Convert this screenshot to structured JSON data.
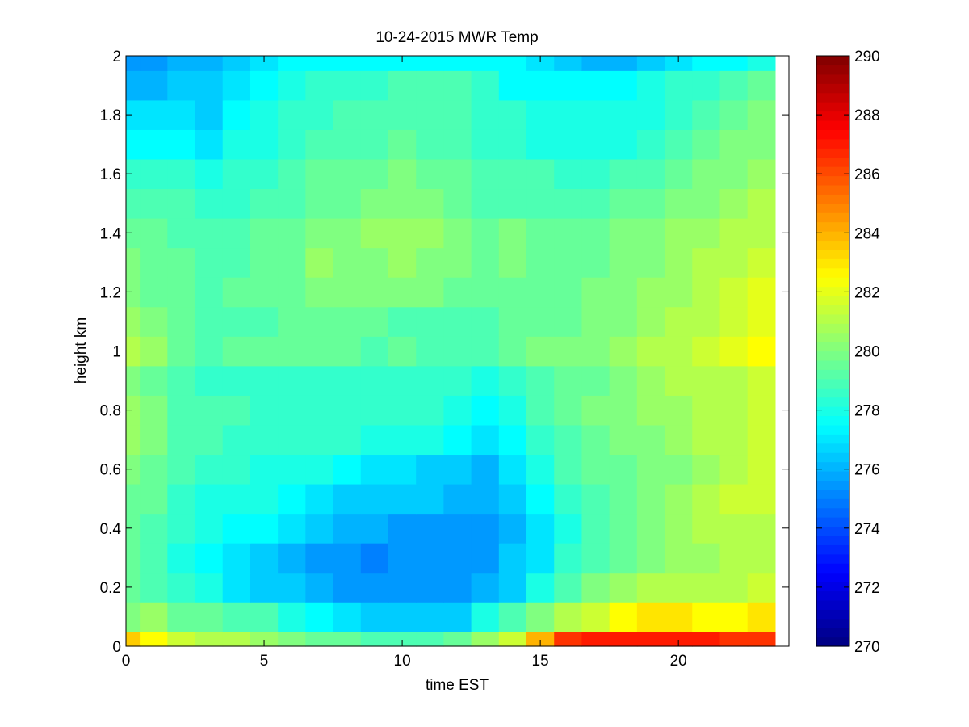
{
  "chart_data": {
    "type": "heatmap",
    "title": "10-24-2015 MWR Temp",
    "xlabel": "time EST",
    "ylabel": "height km",
    "colormap": "jet",
    "xlim": [
      0,
      24
    ],
    "ylim": [
      0,
      2
    ],
    "clim": [
      270,
      290
    ],
    "x_ticks": [
      0,
      5,
      10,
      15,
      20
    ],
    "y_ticks": [
      0,
      0.2,
      0.4,
      0.6,
      0.8,
      1,
      1.2,
      1.4,
      1.6,
      1.8,
      2
    ],
    "colorbar_ticks": [
      270,
      272,
      274,
      276,
      278,
      280,
      282,
      284,
      286,
      288,
      290
    ],
    "x": [
      0,
      1,
      2,
      3,
      4,
      5,
      6,
      7,
      8,
      9,
      10,
      11,
      12,
      13,
      14,
      15,
      16,
      17,
      18,
      19,
      20,
      21,
      22,
      23
    ],
    "y": [
      0,
      0.1,
      0.2,
      0.3,
      0.4,
      0.5,
      0.6,
      0.7,
      0.8,
      0.9,
      1.0,
      1.1,
      1.2,
      1.3,
      1.4,
      1.5,
      1.6,
      1.7,
      1.8,
      1.9,
      2.0
    ],
    "z": [
      [
        283.5,
        282.5,
        281.5,
        281.0,
        281.0,
        280.5,
        280.0,
        279.5,
        279.5,
        279.0,
        279.0,
        279.0,
        279.5,
        280.5,
        281.5,
        284.0,
        286.5,
        287.0,
        287.0,
        287.0,
        287.0,
        287.0,
        286.5,
        286.5
      ],
      [
        280.0,
        280.5,
        279.5,
        279.5,
        279.0,
        279.0,
        278.0,
        277.5,
        277.0,
        276.5,
        276.5,
        276.5,
        276.5,
        278.0,
        279.0,
        280.0,
        281.0,
        281.5,
        282.5,
        283.0,
        283.0,
        282.5,
        282.5,
        283.0
      ],
      [
        279.5,
        279.0,
        278.5,
        278.0,
        277.0,
        276.5,
        276.5,
        276.0,
        275.5,
        275.5,
        275.5,
        275.5,
        275.5,
        276.0,
        276.5,
        278.0,
        279.0,
        280.0,
        280.5,
        281.0,
        281.0,
        281.0,
        281.0,
        281.5
      ],
      [
        279.5,
        279.0,
        278.0,
        277.5,
        277.0,
        276.5,
        276.0,
        275.5,
        275.5,
        275.0,
        275.5,
        275.5,
        275.5,
        275.5,
        276.5,
        277.0,
        278.5,
        279.0,
        279.5,
        280.0,
        280.5,
        280.5,
        281.0,
        281.0
      ],
      [
        279.5,
        279.0,
        278.5,
        278.0,
        277.5,
        277.5,
        277.0,
        276.5,
        276.0,
        276.0,
        275.5,
        275.5,
        275.5,
        275.5,
        276.0,
        277.0,
        278.0,
        279.0,
        279.5,
        280.0,
        280.5,
        281.0,
        281.0,
        281.0
      ],
      [
        279.5,
        279.5,
        278.5,
        278.0,
        278.0,
        278.0,
        277.5,
        277.0,
        276.5,
        276.5,
        276.5,
        276.5,
        276.0,
        276.0,
        276.5,
        277.5,
        278.5,
        279.0,
        279.5,
        280.0,
        280.5,
        281.0,
        281.5,
        281.5
      ],
      [
        280.0,
        279.5,
        279.0,
        278.5,
        278.5,
        278.0,
        278.0,
        278.0,
        277.5,
        277.0,
        277.0,
        276.5,
        276.5,
        276.0,
        277.0,
        278.0,
        279.0,
        279.5,
        279.5,
        280.0,
        280.0,
        280.5,
        281.0,
        281.5
      ],
      [
        280.5,
        280.0,
        279.0,
        279.0,
        278.5,
        278.5,
        278.5,
        278.5,
        278.5,
        278.0,
        278.0,
        278.0,
        277.5,
        277.0,
        277.5,
        278.5,
        279.0,
        279.5,
        280.0,
        280.0,
        280.5,
        281.0,
        281.0,
        281.5
      ],
      [
        280.5,
        280.0,
        279.0,
        279.0,
        279.0,
        278.5,
        278.5,
        278.5,
        278.5,
        278.5,
        278.5,
        278.5,
        278.0,
        277.5,
        278.0,
        279.0,
        279.5,
        280.0,
        280.0,
        280.5,
        280.5,
        281.0,
        281.0,
        281.5
      ],
      [
        280.0,
        279.5,
        279.0,
        278.5,
        278.5,
        278.5,
        278.5,
        278.5,
        278.5,
        278.5,
        278.5,
        278.5,
        278.5,
        278.0,
        278.5,
        279.0,
        279.5,
        279.5,
        280.0,
        280.5,
        281.0,
        281.0,
        281.0,
        281.5
      ],
      [
        281.0,
        280.5,
        279.5,
        279.0,
        279.5,
        279.5,
        279.5,
        279.5,
        279.5,
        279.0,
        279.5,
        279.0,
        279.0,
        279.0,
        279.5,
        280.0,
        280.0,
        280.0,
        280.5,
        281.0,
        281.0,
        281.5,
        282.0,
        282.5
      ],
      [
        280.5,
        280.0,
        279.5,
        279.0,
        279.0,
        279.0,
        279.5,
        279.5,
        279.5,
        279.5,
        279.0,
        279.0,
        279.0,
        279.0,
        279.5,
        279.5,
        279.5,
        280.0,
        280.0,
        280.5,
        281.0,
        281.0,
        281.5,
        282.0
      ],
      [
        280.0,
        279.5,
        279.5,
        279.0,
        279.5,
        279.5,
        279.5,
        280.0,
        280.0,
        280.0,
        280.0,
        280.0,
        279.5,
        279.5,
        279.5,
        279.5,
        279.5,
        280.0,
        280.0,
        280.5,
        280.5,
        281.0,
        281.5,
        282.0
      ],
      [
        280.0,
        279.5,
        279.5,
        279.0,
        279.0,
        279.5,
        279.5,
        280.5,
        280.0,
        280.0,
        280.5,
        280.0,
        280.0,
        279.5,
        280.0,
        279.5,
        279.5,
        279.5,
        280.0,
        280.0,
        280.5,
        281.0,
        281.0,
        281.5
      ],
      [
        279.5,
        279.5,
        279.0,
        279.0,
        279.0,
        279.5,
        279.5,
        280.0,
        280.0,
        280.5,
        280.5,
        280.5,
        280.0,
        279.5,
        280.0,
        279.5,
        279.5,
        279.5,
        280.0,
        280.0,
        280.5,
        280.5,
        281.0,
        281.0
      ],
      [
        279.0,
        279.0,
        279.0,
        278.5,
        278.5,
        279.0,
        279.0,
        279.5,
        279.5,
        280.0,
        280.0,
        280.0,
        279.5,
        279.0,
        279.0,
        279.0,
        279.0,
        279.0,
        279.5,
        279.5,
        280.0,
        280.0,
        280.5,
        281.0
      ],
      [
        278.5,
        278.5,
        278.5,
        278.0,
        278.5,
        278.5,
        279.0,
        279.5,
        279.5,
        279.5,
        280.0,
        279.5,
        279.5,
        279.0,
        279.0,
        279.0,
        278.5,
        278.5,
        279.0,
        279.0,
        279.5,
        280.0,
        280.0,
        280.5
      ],
      [
        277.5,
        277.5,
        277.5,
        277.0,
        278.0,
        278.0,
        278.5,
        279.0,
        279.0,
        279.0,
        279.5,
        279.0,
        279.0,
        278.5,
        278.5,
        278.0,
        278.0,
        278.0,
        278.0,
        278.5,
        279.0,
        279.5,
        280.0,
        280.0
      ],
      [
        277.0,
        277.0,
        277.0,
        276.5,
        277.5,
        278.0,
        278.5,
        278.5,
        279.0,
        279.0,
        279.0,
        279.0,
        279.0,
        278.5,
        278.5,
        278.0,
        278.0,
        278.0,
        278.0,
        278.0,
        278.5,
        279.0,
        279.5,
        280.0
      ],
      [
        276.0,
        276.0,
        276.5,
        276.5,
        277.0,
        277.5,
        278.0,
        278.5,
        278.5,
        278.5,
        279.0,
        279.0,
        279.0,
        278.5,
        277.5,
        277.5,
        277.5,
        277.5,
        277.5,
        278.0,
        278.5,
        278.5,
        279.0,
        279.5
      ],
      [
        275.5,
        275.5,
        276.0,
        276.0,
        276.5,
        277.0,
        277.5,
        277.5,
        277.5,
        277.5,
        277.5,
        277.5,
        277.5,
        277.5,
        277.5,
        277.0,
        276.5,
        276.0,
        276.0,
        276.5,
        277.0,
        277.5,
        277.5,
        278.0
      ]
    ]
  }
}
